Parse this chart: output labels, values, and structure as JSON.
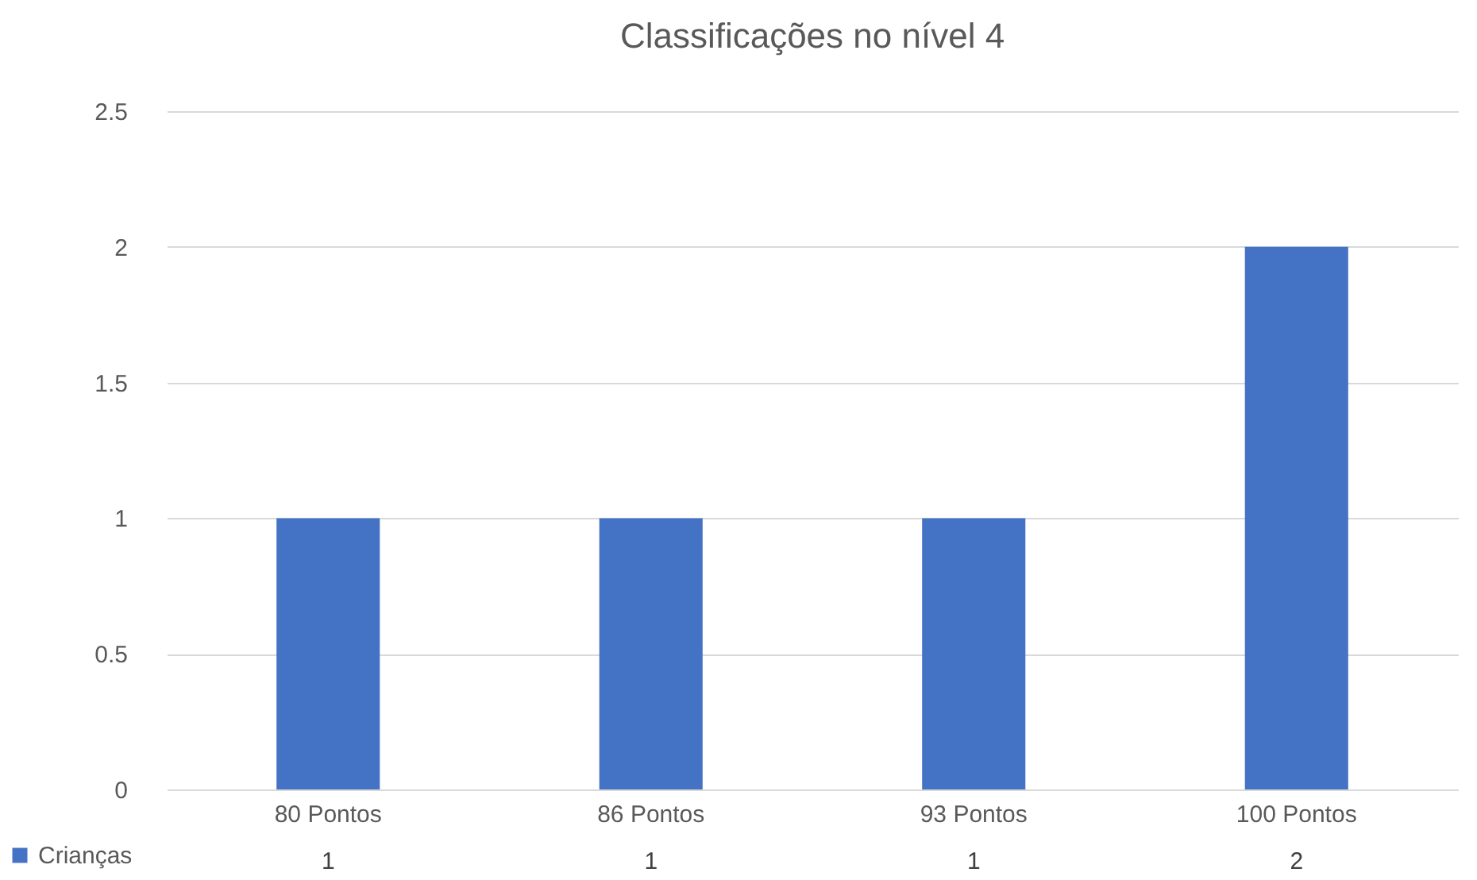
{
  "chart_data": {
    "type": "bar",
    "title": "Classificações no nível 4",
    "categories": [
      "80 Pontos",
      "86 Pontos",
      "93 Pontos",
      "100 Pontos"
    ],
    "series": [
      {
        "name": "Crianças",
        "color": "#4472c4",
        "values": [
          1,
          1,
          1,
          2
        ]
      }
    ],
    "ylim": [
      0,
      2.5
    ],
    "yticks": [
      0,
      0.5,
      1,
      1.5,
      2,
      2.5
    ],
    "grid": "y",
    "data_labels": true,
    "legend": "bottom left"
  }
}
